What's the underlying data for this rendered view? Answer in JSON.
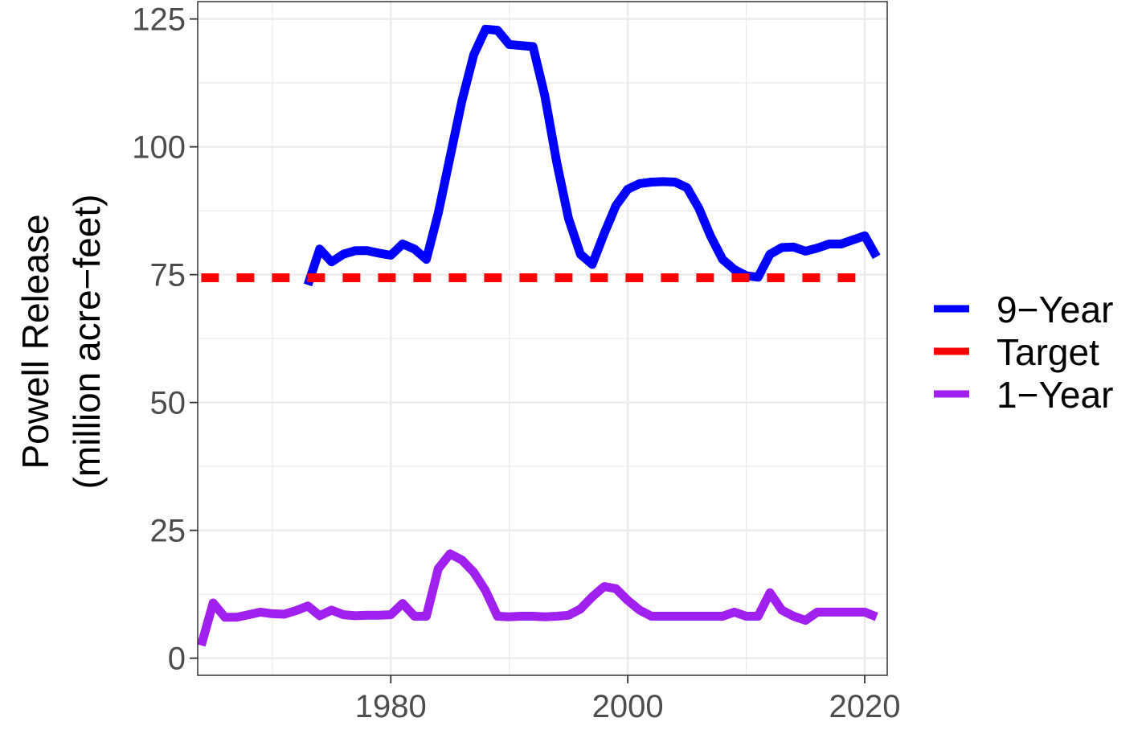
{
  "chart_data": {
    "type": "line",
    "title": "",
    "xlabel": "",
    "ylabel_line1": "Powell Release",
    "ylabel_line2": "(million acre−feet)",
    "xlim": [
      1964,
      2021
    ],
    "ylim": [
      0,
      125
    ],
    "xticks": [
      {
        "value": 1980,
        "label": "1980"
      },
      {
        "value": 2000,
        "label": "2000"
      },
      {
        "value": 2020,
        "label": "2020"
      }
    ],
    "yticks": [
      {
        "value": 0,
        "label": "0"
      },
      {
        "value": 25,
        "label": "25"
      },
      {
        "value": 50,
        "label": "50"
      },
      {
        "value": 75,
        "label": "75"
      },
      {
        "value": 100,
        "label": "100"
      },
      {
        "value": 125,
        "label": "125"
      }
    ],
    "x_minor_grid": [
      1970,
      1990,
      2010
    ],
    "y_minor_grid": [
      12.5,
      37.5,
      62.5,
      87.5,
      112.5
    ],
    "grid": true,
    "legend_position": "right",
    "series": [
      {
        "name": "9−Year",
        "color": "#0000ff",
        "style": "solid",
        "x": [
          1973,
          1974,
          1975,
          1976,
          1977,
          1978,
          1979,
          1980,
          1981,
          1982,
          1983,
          1984,
          1985,
          1986,
          1987,
          1988,
          1989,
          1990,
          1991,
          1992,
          1993,
          1994,
          1995,
          1996,
          1997,
          1998,
          1999,
          2000,
          2001,
          2002,
          2003,
          2004,
          2005,
          2006,
          2007,
          2008,
          2009,
          2010,
          2011,
          2012,
          2013,
          2014,
          2015,
          2016,
          2017,
          2018,
          2019,
          2020,
          2021
        ],
        "y": [
          73,
          80,
          77.5,
          79,
          79.7,
          79.7,
          79.2,
          78.8,
          81,
          80,
          78,
          87,
          98,
          109,
          118,
          123,
          122.8,
          120,
          119.8,
          119.6,
          110,
          97,
          86,
          79,
          77,
          83,
          88.5,
          91.7,
          92.8,
          93.1,
          93.2,
          93.1,
          92,
          88,
          82.5,
          78,
          76,
          74.8,
          74.5,
          79,
          80.3,
          80.4,
          79.6,
          80.2,
          81,
          81,
          81.8,
          82.6,
          78.5
        ]
      },
      {
        "name": "Target",
        "color": "#ff0000",
        "style": "dashed",
        "x": [
          1964,
          2020
        ],
        "y": [
          74.4,
          74.4
        ]
      },
      {
        "name": "1−Year",
        "color": "#a020f0",
        "style": "solid",
        "x": [
          1964,
          1965,
          1966,
          1967,
          1968,
          1969,
          1970,
          1971,
          1972,
          1973,
          1974,
          1975,
          1976,
          1977,
          1978,
          1979,
          1980,
          1981,
          1982,
          1983,
          1984,
          1985,
          1986,
          1987,
          1988,
          1989,
          1990,
          1991,
          1992,
          1993,
          1994,
          1995,
          1996,
          1997,
          1998,
          1999,
          2000,
          2001,
          2002,
          2003,
          2004,
          2005,
          2006,
          2007,
          2008,
          2009,
          2010,
          2011,
          2012,
          2013,
          2014,
          2015,
          2016,
          2017,
          2018,
          2019,
          2020,
          2021
        ],
        "y": [
          2.5,
          10.8,
          8,
          8,
          8.5,
          9,
          8.7,
          8.6,
          9.3,
          10.2,
          8.3,
          9.4,
          8.5,
          8.3,
          8.4,
          8.4,
          8.5,
          10.7,
          8.2,
          8.2,
          17.5,
          20.4,
          19.2,
          16.8,
          13.2,
          8.2,
          8.1,
          8.2,
          8.2,
          8.1,
          8.2,
          8.4,
          9.6,
          12,
          14,
          13.6,
          11.3,
          9.4,
          8.2,
          8.2,
          8.2,
          8.2,
          8.2,
          8.2,
          8.2,
          9,
          8.2,
          8.2,
          12.8,
          9.4,
          8.2,
          7.4,
          9,
          9,
          9,
          9,
          9,
          8.1
        ]
      }
    ]
  },
  "legend": {
    "items": [
      {
        "label": "9−Year",
        "color": "#0000ff"
      },
      {
        "label": "Target",
        "color": "#ff0000"
      },
      {
        "label": "1−Year",
        "color": "#a020f0"
      }
    ]
  }
}
